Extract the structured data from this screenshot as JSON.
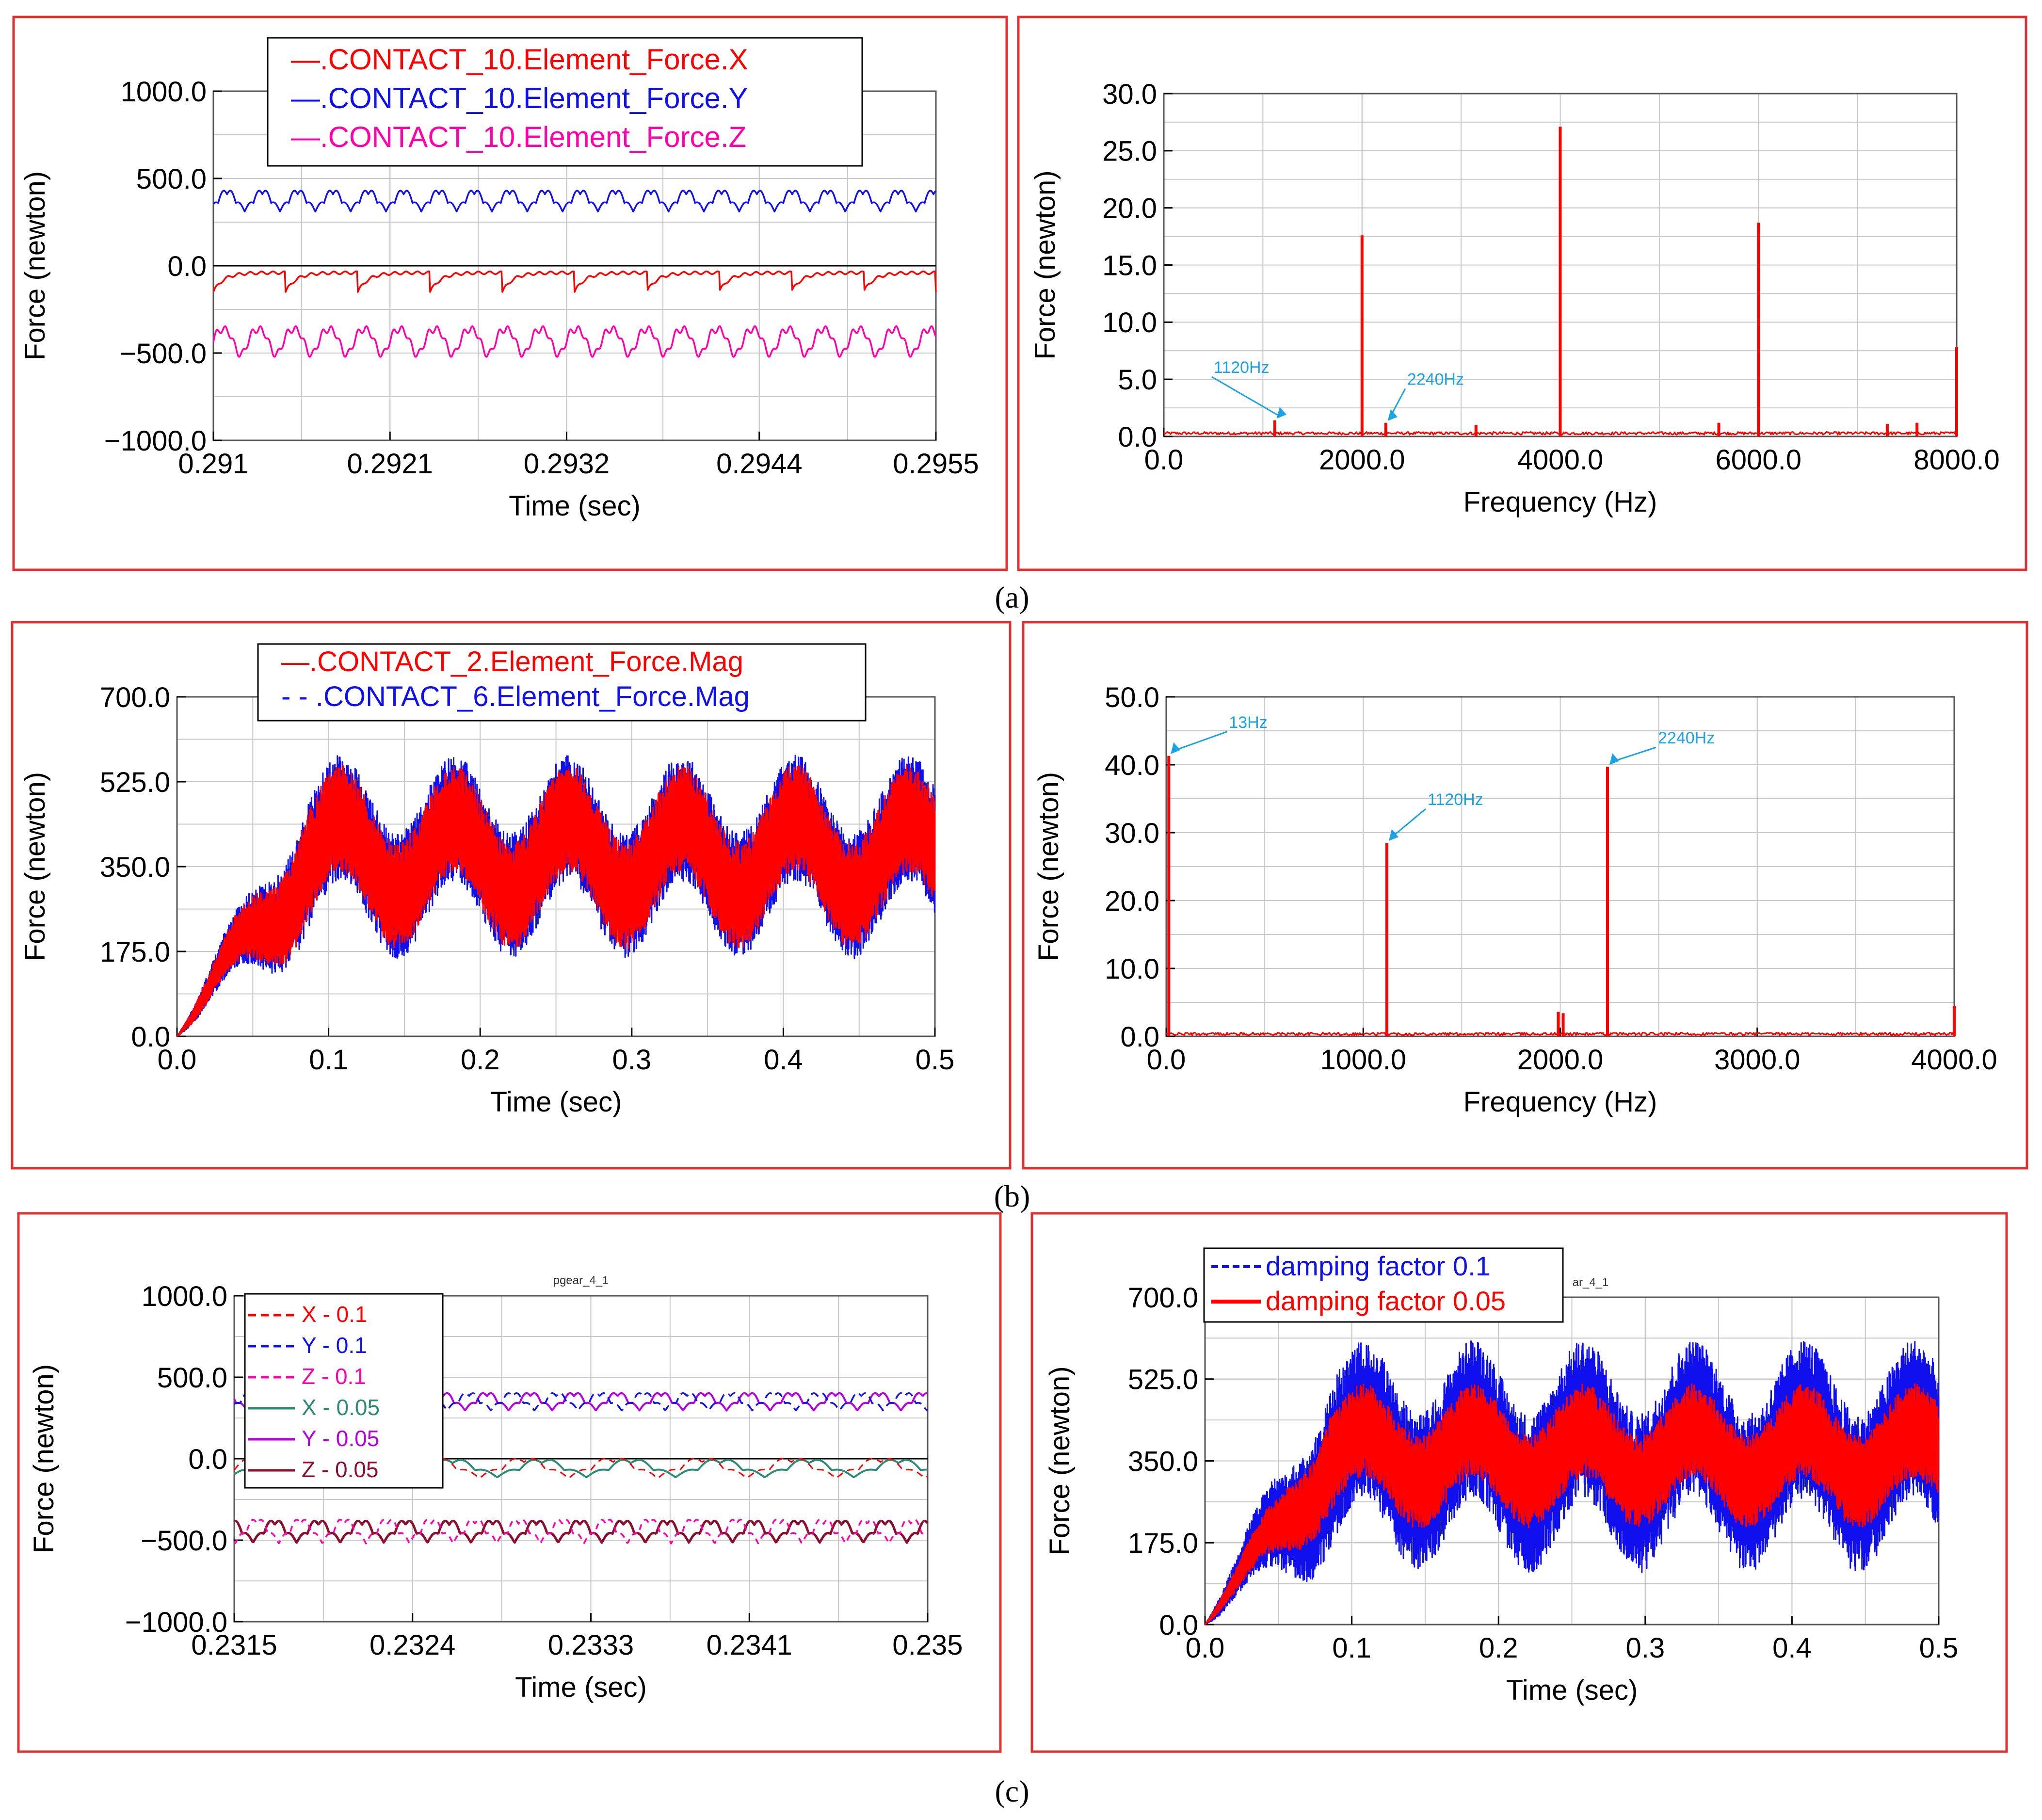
{
  "figure": {
    "labels": [
      "(a)",
      "(b)",
      "(c)"
    ],
    "colors": {
      "frame": "#e03030",
      "red": "#ff0000",
      "blue": "#1010ee",
      "magenta": "#ff00aa",
      "teal": "#2e8b73",
      "purple": "#b400e0",
      "maroon": "#8b1030",
      "annot": "#1aa3e6",
      "grid": "#c8c8c8",
      "black": "#000000"
    }
  },
  "chart_data": [
    {
      "id": "a1",
      "type": "line",
      "xlabel": "Time (sec)",
      "ylabel": "Force (newton)",
      "xlim": [
        0.291,
        0.2955
      ],
      "ylim": [
        -1000,
        1000
      ],
      "xticks": [
        0.291,
        0.2921,
        0.2932,
        0.2944,
        0.2955
      ],
      "xtick_labels": [
        "0.291",
        "0.2921",
        "0.2932",
        "0.2944",
        "0.2955"
      ],
      "yticks": [
        -1000,
        -500,
        0,
        500,
        1000
      ],
      "ytick_labels": [
        "−1000.0",
        "−500.0",
        "0.0",
        "500.0",
        "1000.0"
      ],
      "legend": [
        "—.CONTACT_10.Element_Force.X",
        "—.CONTACT_10.Element_Force.Y",
        "—.CONTACT_10.Element_Force.Z"
      ],
      "series": [
        {
          "name": ".CONTACT_10.Element_Force.X",
          "color": "#ff0000",
          "mean": -40,
          "amplitude": 110,
          "period": 0.00045,
          "shape": "spiky_down"
        },
        {
          "name": ".CONTACT_10.Element_Force.Y",
          "color": "#1010ee",
          "mean": 380,
          "amplitude": 90,
          "period": 0.00022,
          "shape": "wave"
        },
        {
          "name": ".CONTACT_10.Element_Force.Z",
          "color": "#ff00aa",
          "mean": -420,
          "amplitude": 110,
          "period": 0.00022,
          "shape": "dip_down"
        }
      ]
    },
    {
      "id": "a2",
      "type": "bar",
      "xlabel": "Frequency (Hz)",
      "ylabel": "Force (newton)",
      "xlim": [
        0,
        8000
      ],
      "ylim": [
        0,
        30
      ],
      "xticks": [
        0,
        2000,
        4000,
        6000,
        8000
      ],
      "xtick_labels": [
        "0.0",
        "2000.0",
        "4000.0",
        "6000.0",
        "8000.0"
      ],
      "yticks": [
        0,
        5,
        10,
        15,
        20,
        25,
        30
      ],
      "ytick_labels": [
        "0.0",
        "5.0",
        "10.0",
        "15.0",
        "20.0",
        "25.0",
        "30.0"
      ],
      "peaks": [
        {
          "x": 1120,
          "y": 1.4
        },
        {
          "x": 2000,
          "y": 17.6
        },
        {
          "x": 2240,
          "y": 1.2
        },
        {
          "x": 3150,
          "y": 1.0
        },
        {
          "x": 4000,
          "y": 27.1
        },
        {
          "x": 5600,
          "y": 1.2
        },
        {
          "x": 6000,
          "y": 18.7
        },
        {
          "x": 7300,
          "y": 1.1
        },
        {
          "x": 7600,
          "y": 1.2
        },
        {
          "x": 8000,
          "y": 7.8
        }
      ],
      "annotations": [
        {
          "text": "1120Hz",
          "x": 1120,
          "y": 1.4
        },
        {
          "text": "2240Hz",
          "x": 2240,
          "y": 1.2
        }
      ]
    },
    {
      "id": "b1",
      "type": "line",
      "xlabel": "Time (sec)",
      "ylabel": "Force (newton)",
      "xlim": [
        0,
        0.5
      ],
      "ylim": [
        0,
        700
      ],
      "xticks": [
        0,
        0.1,
        0.2,
        0.3,
        0.4,
        0.5
      ],
      "xtick_labels": [
        "0.0",
        "0.1",
        "0.2",
        "0.3",
        "0.4",
        "0.5"
      ],
      "yticks": [
        0,
        175,
        350,
        525,
        700
      ],
      "ytick_labels": [
        "0.0",
        "175.0",
        "350.0",
        "525.0",
        "700.0"
      ],
      "legend": [
        "—.CONTACT_2.Element_Force.Mag",
        "- - .CONTACT_6.Element_Force.Mag"
      ],
      "series": [
        {
          "name": ".CONTACT_2.Element_Force.Mag",
          "color": "#ff0000",
          "mean": 370,
          "envelope_amplitude": 80,
          "envelope_period": 0.075,
          "band": 110
        },
        {
          "name": ".CONTACT_6.Element_Force.Mag",
          "color": "#1010ee",
          "mean": 370,
          "envelope_amplitude": 80,
          "envelope_period": 0.075,
          "band": 130
        }
      ]
    },
    {
      "id": "b2",
      "type": "bar",
      "xlabel": "Frequency (Hz)",
      "ylabel": "Force (newton)",
      "xlim": [
        0,
        4000
      ],
      "ylim": [
        0,
        50
      ],
      "xticks": [
        0,
        1000,
        2000,
        3000,
        4000
      ],
      "xtick_labels": [
        "0.0",
        "1000.0",
        "2000.0",
        "3000.0",
        "4000.0"
      ],
      "yticks": [
        0,
        10,
        20,
        30,
        40,
        50
      ],
      "ytick_labels": [
        "0.0",
        "10.0",
        "20.0",
        "30.0",
        "40.0",
        "50.0"
      ],
      "peaks": [
        {
          "x": 13,
          "y": 41.3
        },
        {
          "x": 1120,
          "y": 28.5
        },
        {
          "x": 1990,
          "y": 3.6
        },
        {
          "x": 2015,
          "y": 3.4
        },
        {
          "x": 2240,
          "y": 39.7
        },
        {
          "x": 4000,
          "y": 4.5
        }
      ],
      "annotations": [
        {
          "text": "13Hz",
          "x": 13,
          "y": 41.3
        },
        {
          "text": "1120Hz",
          "x": 1120,
          "y": 28.5
        },
        {
          "text": "2240Hz",
          "x": 2240,
          "y": 39.7
        }
      ]
    },
    {
      "id": "c1",
      "type": "line",
      "title": "pgear_4_1",
      "xlabel": "Time (sec)",
      "ylabel": "Force (newton)",
      "xlim": [
        0.2315,
        0.235
      ],
      "ylim": [
        -1000,
        1000
      ],
      "xticks": [
        0.2315,
        0.2324,
        0.2333,
        0.2341,
        0.235
      ],
      "xtick_labels": [
        "0.2315",
        "0.2324",
        "0.2333",
        "0.2341",
        "0.235"
      ],
      "yticks": [
        -1000,
        -500,
        0,
        500,
        1000
      ],
      "ytick_labels": [
        "−1000.0",
        "−500.0",
        "0.0",
        "500.0",
        "1000.0"
      ],
      "legend": [
        "X - 0.1",
        "Y - 0.1",
        "Z - 0.1",
        "X - 0.05",
        "Y - 0.05",
        "Z - 0.05"
      ],
      "series": [
        {
          "name": "X - 0.1",
          "color": "#ff0000",
          "mean": -50,
          "amplitude": 90,
          "period": 0.00045
        },
        {
          "name": "Y - 0.1",
          "color": "#1010ee",
          "mean": 360,
          "amplitude": 80,
          "period": 0.00022
        },
        {
          "name": "Z - 0.1",
          "color": "#ff00aa",
          "mean": -440,
          "amplitude": 110,
          "period": 0.00022
        },
        {
          "name": "X - 0.05",
          "color": "#2e8b73",
          "mean": -50,
          "amplitude": 80,
          "period": 0.00045
        },
        {
          "name": "Y - 0.05",
          "color": "#b400e0",
          "mean": 360,
          "amplitude": 80,
          "period": 0.00022
        },
        {
          "name": "Z - 0.05",
          "color": "#8b1030",
          "mean": -440,
          "amplitude": 100,
          "period": 0.00022
        }
      ]
    },
    {
      "id": "c2",
      "type": "line",
      "title": "ar_4_1",
      "xlabel": "Time (sec)",
      "ylabel": "Force (newton)",
      "xlim": [
        0,
        0.5
      ],
      "ylim": [
        0,
        700
      ],
      "xticks": [
        0,
        0.1,
        0.2,
        0.3,
        0.4,
        0.5
      ],
      "xtick_labels": [
        "0.0",
        "0.1",
        "0.2",
        "0.3",
        "0.4",
        "0.5"
      ],
      "yticks": [
        0,
        175,
        350,
        525,
        700
      ],
      "ytick_labels": [
        "0.0",
        "175.0",
        "350.0",
        "525.0",
        "700.0"
      ],
      "legend": [
        "damping factor 0.1",
        "damping factor 0.05"
      ],
      "series": [
        {
          "name": "damping factor 0.1",
          "color": "#1010ee",
          "mean": 360,
          "envelope_amplitude": 80,
          "envelope_period": 0.075,
          "band": 170
        },
        {
          "name": "damping factor 0.05",
          "color": "#ff0000",
          "mean": 360,
          "envelope_amplitude": 55,
          "envelope_period": 0.075,
          "band": 100
        }
      ]
    }
  ]
}
